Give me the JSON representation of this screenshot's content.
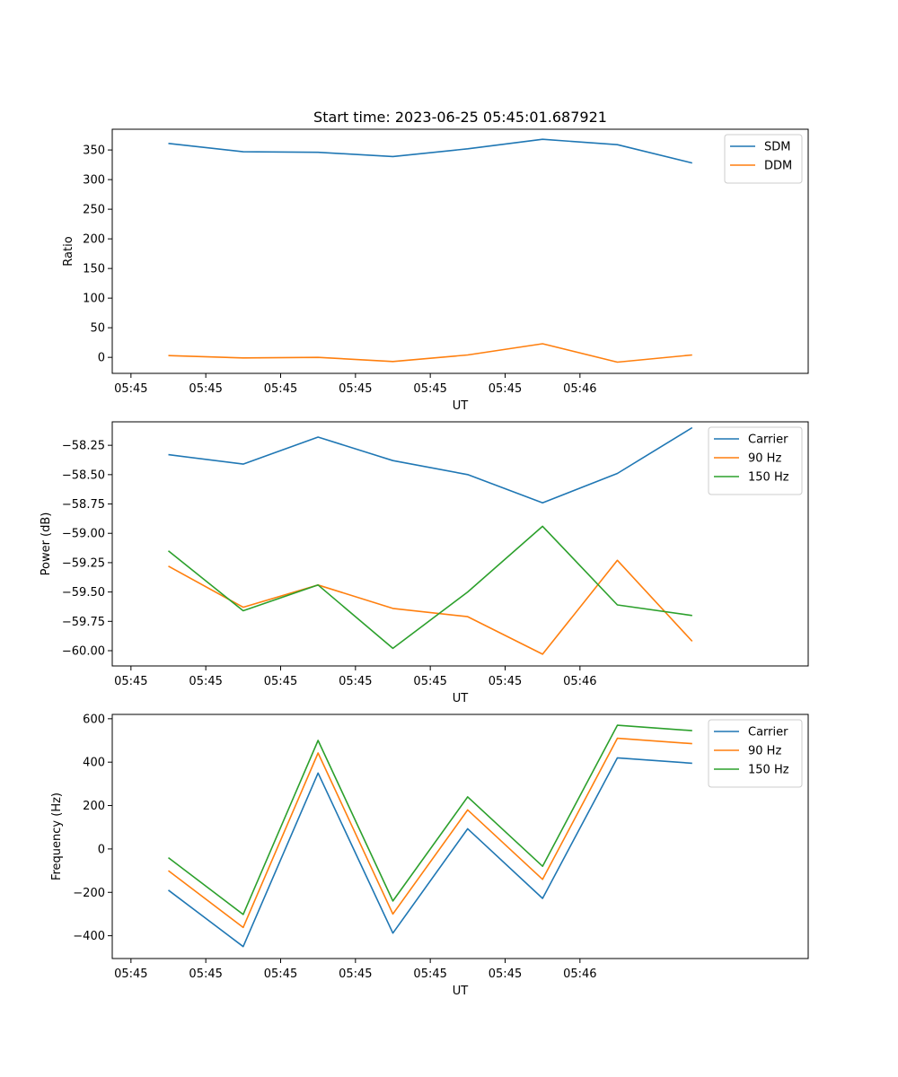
{
  "title": "Start time: 2023-06-25 05:45:01.687921",
  "colors": {
    "blue": "#1f77b4",
    "orange": "#ff7f0e",
    "green": "#2ca02c"
  },
  "chart_data": [
    {
      "type": "line",
      "title": "Start time: 2023-06-25 05:45:01.687921",
      "xlabel": "UT",
      "ylabel": "Ratio",
      "x_tick_labels": [
        "05:45",
        "05:45",
        "05:45",
        "05:45",
        "05:45",
        "05:45",
        "05:46"
      ],
      "xlim": [
        -0.25,
        9.05
      ],
      "x": [
        0.5,
        1.5,
        2.5,
        3.5,
        4.5,
        5.5,
        6.5,
        7.5
      ],
      "ylim": [
        -27,
        385
      ],
      "y_ticks": [
        0,
        50,
        100,
        150,
        200,
        250,
        300,
        350
      ],
      "legend": "upper right",
      "grid": false,
      "series": [
        {
          "name": "SDM",
          "color": "#1f77b4",
          "values": [
            361,
            347,
            346,
            339,
            352,
            368,
            359,
            328
          ]
        },
        {
          "name": "DDM",
          "color": "#ff7f0e",
          "values": [
            3,
            -1,
            0,
            -7,
            4,
            23,
            -8,
            4
          ]
        }
      ]
    },
    {
      "type": "line",
      "xlabel": "UT",
      "ylabel": "Power (dB)",
      "x_tick_labels": [
        "05:45",
        "05:45",
        "05:45",
        "05:45",
        "05:45",
        "05:45",
        "05:46"
      ],
      "xlim": [
        -0.25,
        9.05
      ],
      "x": [
        0.5,
        1.5,
        2.5,
        3.5,
        4.5,
        5.5,
        6.5,
        7.5
      ],
      "ylim": [
        -60.13,
        -58.05
      ],
      "y_ticks": [
        -60.0,
        -59.75,
        -59.5,
        -59.25,
        -59.0,
        -58.75,
        -58.5,
        -58.25
      ],
      "y_tick_labels": [
        "−60.00",
        "−59.75",
        "−59.50",
        "−59.25",
        "−59.00",
        "−58.75",
        "−58.50",
        "−58.25"
      ],
      "legend": "upper right",
      "grid": false,
      "series": [
        {
          "name": "Carrier",
          "color": "#1f77b4",
          "values": [
            -58.33,
            -58.41,
            -58.18,
            -58.38,
            -58.5,
            -58.74,
            -58.49,
            -58.1
          ]
        },
        {
          "name": "90 Hz",
          "color": "#ff7f0e",
          "values": [
            -59.28,
            -59.63,
            -59.44,
            -59.64,
            -59.71,
            -60.03,
            -59.23,
            -59.92
          ]
        },
        {
          "name": "150 Hz",
          "color": "#2ca02c",
          "values": [
            -59.15,
            -59.66,
            -59.44,
            -59.98,
            -59.5,
            -58.94,
            -59.61,
            -59.7
          ]
        }
      ]
    },
    {
      "type": "line",
      "xlabel": "UT",
      "ylabel": "Frequency (Hz)",
      "x_tick_labels": [
        "05:45",
        "05:45",
        "05:45",
        "05:45",
        "05:45",
        "05:45",
        "05:46"
      ],
      "xlim": [
        -0.25,
        9.05
      ],
      "x": [
        0.5,
        1.5,
        2.5,
        3.5,
        4.5,
        5.5,
        6.5,
        7.5
      ],
      "ylim": [
        -505,
        620
      ],
      "y_ticks": [
        -400,
        -200,
        0,
        200,
        400,
        600
      ],
      "y_tick_labels": [
        "−400",
        "−200",
        "0",
        "200",
        "400",
        "600"
      ],
      "legend": "upper right",
      "grid": false,
      "series": [
        {
          "name": "Carrier",
          "color": "#1f77b4",
          "values": [
            -190,
            -450,
            350,
            -388,
            93,
            -228,
            420,
            395
          ]
        },
        {
          "name": "90 Hz",
          "color": "#ff7f0e",
          "values": [
            -100,
            -362,
            442,
            -300,
            180,
            -140,
            510,
            485
          ]
        },
        {
          "name": "150 Hz",
          "color": "#2ca02c",
          "values": [
            -40,
            -302,
            500,
            -240,
            240,
            -80,
            570,
            545
          ]
        }
      ]
    }
  ]
}
